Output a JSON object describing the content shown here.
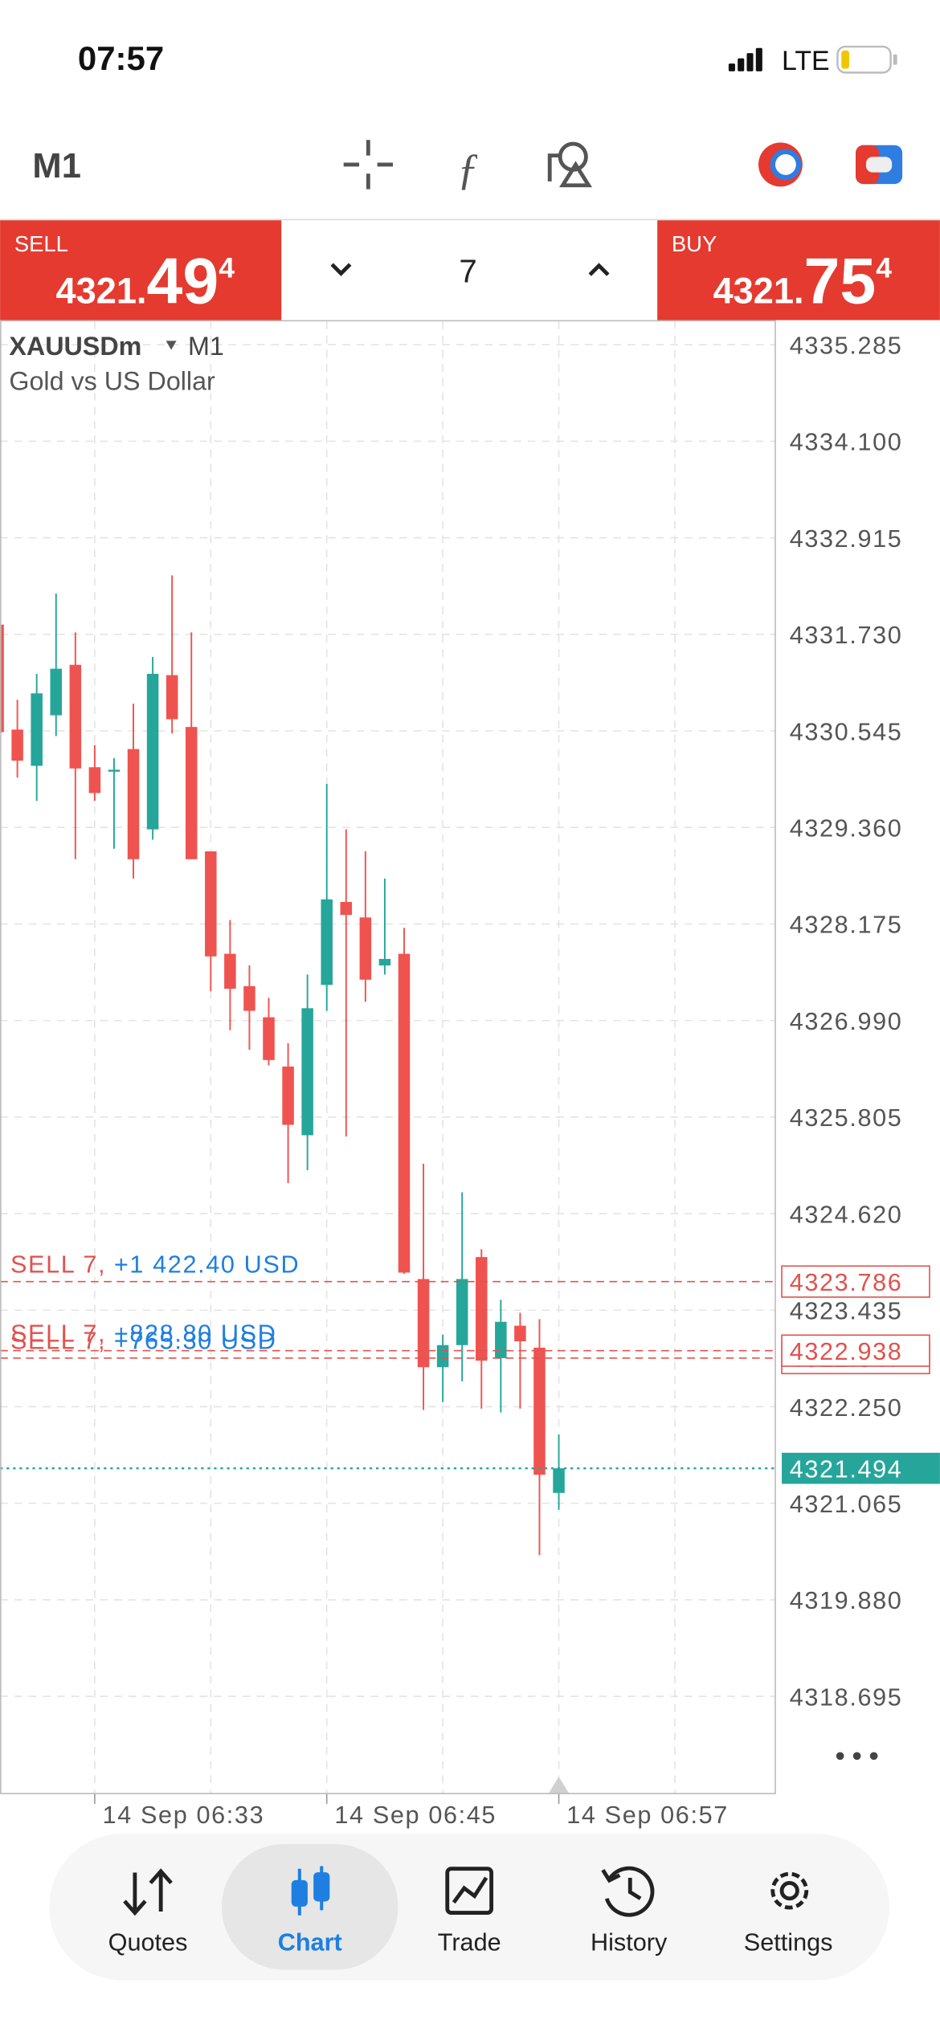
{
  "status_bar": {
    "time": "07:57",
    "network": "LTE"
  },
  "toolbar": {
    "timeframe": "M1"
  },
  "trade_panel": {
    "sell_label": "SELL",
    "sell_price_main": "4321.",
    "sell_price_big": "49",
    "sell_price_sup": "4",
    "volume": "7",
    "buy_label": "BUY",
    "buy_price_main": "4321.",
    "buy_price_big": "75",
    "buy_price_sup": "4"
  },
  "chart": {
    "type": "candlestick",
    "symbol": "XAUUSDm",
    "timeframe": "M1",
    "description": "Gold vs US Dollar",
    "categories": [
      null,
      null,
      null,
      null,
      null,
      "14 Sep 06:33",
      null,
      null,
      null,
      null,
      null,
      null,
      null,
      null,
      null,
      null,
      null,
      "14 Sep 06:45",
      null,
      null,
      null,
      null,
      null,
      null,
      null,
      null,
      null,
      null,
      null,
      "14 Sep 06:57"
    ],
    "open": [
      4331.849,
      4330.561,
      4330.116,
      4330.736,
      4331.356,
      4330.099,
      4330.068,
      4330.322,
      4329.336,
      4331.229,
      4330.593,
      4329.066,
      4327.809,
      4327.412,
      4327.03,
      4326.425,
      4325.582,
      4327.427,
      4328.445,
      4328.255,
      4327.666,
      4327.809,
      4323.817,
      4322.735,
      4323.006,
      4324.087,
      4322.847,
      4323.244,
      4322.974,
      4321.192
    ],
    "high": [
      4331.849,
      4330.927,
      4331.245,
      4332.231,
      4331.754,
      4330.37,
      4330.211,
      4330.879,
      4331.452,
      4332.454,
      4331.754,
      4329.066,
      4328.223,
      4327.666,
      4327.268,
      4326.712,
      4327.555,
      4329.893,
      4329.336,
      4329.066,
      4328.732,
      4328.127,
      4325.232,
      4323.133,
      4324.882,
      4324.183,
      4323.562,
      4323.403,
      4323.324,
      4321.908
    ],
    "low": [
      4330.529,
      4329.972,
      4329.686,
      4330.481,
      4328.97,
      4329.686,
      4329.098,
      4328.732,
      4329.209,
      4330.513,
      4328.97,
      4327.348,
      4326.871,
      4326.632,
      4326.441,
      4324.994,
      4325.153,
      4327.109,
      4325.566,
      4327.221,
      4327.555,
      4323.88,
      4322.21,
      4322.306,
      4322.56,
      4322.226,
      4322.179,
      4322.226,
      4320.429,
      4320.985
    ],
    "close": [
      4330.529,
      4330.179,
      4331.006,
      4331.308,
      4330.084,
      4329.782,
      4330.068,
      4328.97,
      4331.245,
      4330.688,
      4328.97,
      4327.777,
      4327.38,
      4327.109,
      4326.505,
      4325.71,
      4327.141,
      4328.477,
      4328.286,
      4327.491,
      4327.746,
      4323.896,
      4322.735,
      4323.006,
      4323.817,
      4322.815,
      4323.292,
      4323.053,
      4321.415,
      4321.494
    ],
    "up_color": "#26a69a",
    "down_color": "#ef5350",
    "ylim": [
      4317.502,
      4335.571
    ],
    "yticks": [
      4335.285,
      {
        "value": 4334.1,
        "label": "4334.100"
      },
      4332.915,
      {
        "value": 4331.73,
        "label": "4331.730"
      },
      4330.545,
      {
        "value": 4329.36,
        "label": "4329.360"
      },
      4328.175,
      {
        "value": 4326.99,
        "label": "4326.990"
      },
      4325.805,
      {
        "value": 4324.62,
        "label": "4324.620"
      },
      4323.435,
      {
        "value": 4322.25,
        "label": "4322.250"
      },
      4321.065,
      {
        "value": 4319.88,
        "label": "4319.880"
      },
      4318.695
    ],
    "grid": true,
    "bid": 4321.494,
    "orders": [
      {
        "label": "SELL 7,",
        "profit": "+1 422.40 USD",
        "price": 4323.786
      },
      {
        "label": "SELL 7,",
        "profit": "+828.80 USD",
        "price": 4322.938
      },
      {
        "label": "SELL 7,",
        "profit": "+765.30 USD",
        "price": 4322.847
      }
    ]
  },
  "nav": {
    "items": [
      "Quotes",
      "Chart",
      "Trade",
      "History",
      "Settings"
    ]
  }
}
